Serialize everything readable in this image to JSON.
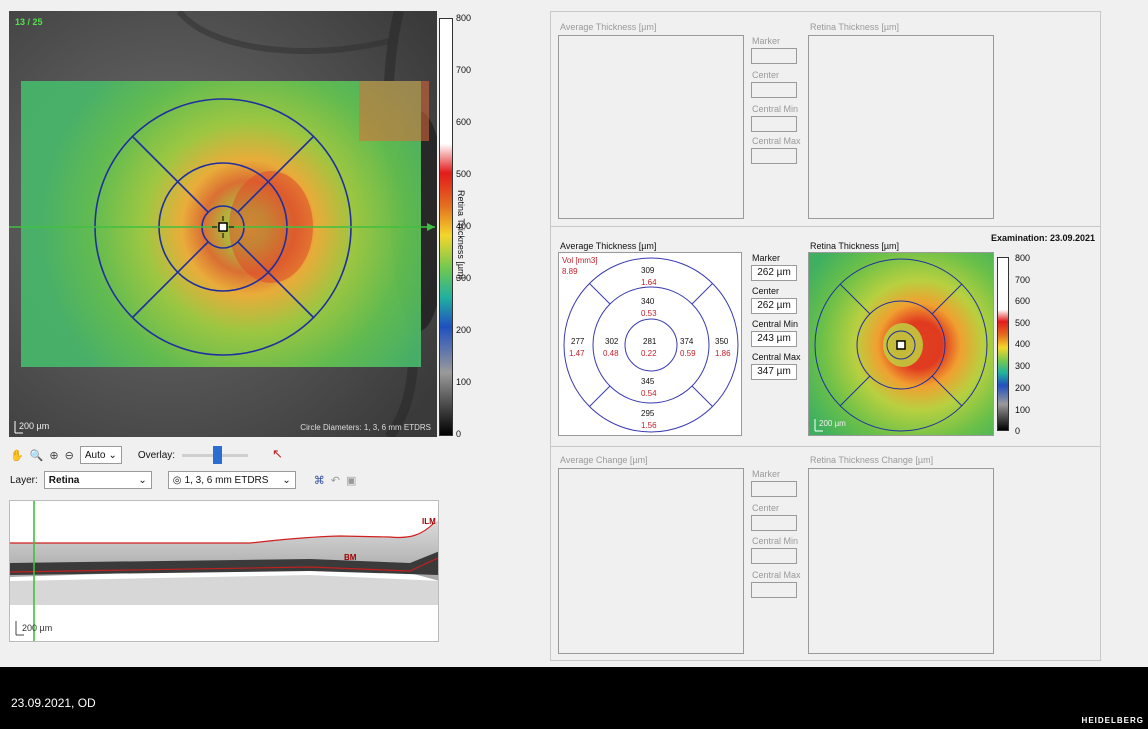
{
  "fundus": {
    "counter": "13 / 25",
    "scale_label": "200 µm",
    "circle_caption": "Circle Diameters: 1, 3, 6 mm ETDRS"
  },
  "colorbar_left": {
    "title": "Retina Thickness [µm]",
    "ticks": [
      "800",
      "700",
      "600",
      "500",
      "400",
      "300",
      "200",
      "100",
      "0"
    ]
  },
  "toolbar": {
    "zoom_select": "Auto",
    "overlay_label": "Overlay:",
    "overlay_level": 0.55,
    "layer_label": "Layer:",
    "layer_value": "Retina",
    "grid_value": "1, 3, 6 mm ETDRS"
  },
  "bscan": {
    "scale_label": "200 µm",
    "ilm_label": "ILM",
    "bm_label": "BM"
  },
  "top_panel": {
    "avg_label": "Average Thickness [µm]",
    "retina_label": "Retina Thickness [µm]",
    "marker": "Marker",
    "center": "Center",
    "cmin": "Central Min",
    "cmax": "Central Max"
  },
  "middle_panel": {
    "examination": "Examination: 23.09.2021",
    "avg_label": "Average Thickness [µm]",
    "retina_label": "Retina Thickness [µm]",
    "vol_label": "Vol [mm3]",
    "vol_total": "8.89",
    "marker_label": "Marker",
    "marker_value": "262 µm",
    "center_label": "Center",
    "center_value": "262 µm",
    "cmin_label": "Central Min",
    "cmin_value": "243 µm",
    "cmax_label": "Central Max",
    "cmax_value": "347 µm",
    "scale_label": "200 µm",
    "sectors": {
      "center": {
        "t": "281",
        "v": "0.22"
      },
      "inner_top": {
        "t": "340",
        "v": "0.53"
      },
      "inner_bottom": {
        "t": "345",
        "v": "0.54"
      },
      "inner_left": {
        "t": "302",
        "v": "0.48"
      },
      "inner_right": {
        "t": "374",
        "v": "0.59"
      },
      "outer_top": {
        "t": "309",
        "v": "1.64"
      },
      "outer_bottom": {
        "t": "295",
        "v": "1.56"
      },
      "outer_left": {
        "t": "277",
        "v": "1.47"
      },
      "outer_right": {
        "t": "350",
        "v": "1.86"
      }
    },
    "colorbar_ticks": [
      "800",
      "700",
      "600",
      "500",
      "400",
      "300",
      "200",
      "100",
      "0"
    ]
  },
  "bottom_panel": {
    "avg_label": "Average Change [µm]",
    "retina_label": "Retina Thickness Change [µm]",
    "marker": "Marker",
    "center": "Center",
    "cmin": "Central Min",
    "cmax": "Central Max"
  },
  "footer": {
    "date_eye": "23.09.2021, OD",
    "brand": "HEIDELBERG"
  },
  "colors": {
    "grid_blue": "#1f2fa0",
    "scan_green": "#40c040",
    "counter_green": "#50e050",
    "vol_red": "#c0202a"
  }
}
